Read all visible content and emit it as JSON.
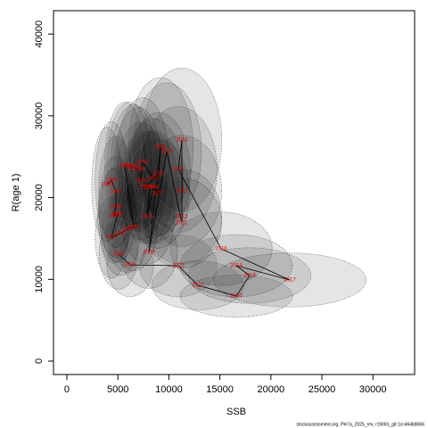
{
  "chart_data": {
    "type": "scatter",
    "x_label": "SSB",
    "y_label": "R(age 1)",
    "footer": "stockassessment.org, Ple7a_2025_rev, r19081_git:1cc464b8066",
    "labels": [
      "1985",
      "1986",
      "1987",
      "1988",
      "1989",
      "1990",
      "1991",
      "1992",
      "1993",
      "1994",
      "1995",
      "1996",
      "1997",
      "1998",
      "1999",
      "2000",
      "2001",
      "2002",
      "2003",
      "2004",
      "2005",
      "2006",
      "2007",
      "2008",
      "2009",
      "2010",
      "2011",
      "2012",
      "2013",
      "2014",
      "2015",
      "2016",
      "2017",
      "2018",
      "2019",
      "2020",
      "2021",
      "2022",
      "2023",
      "2024"
    ],
    "x": [
      3934,
      4371,
      4808,
      4808,
      4633,
      4982,
      4371,
      5245,
      5944,
      6556,
      5682,
      6119,
      6556,
      6993,
      7255,
      7430,
      8479,
      9003,
      7692,
      8129,
      7867,
      8479,
      8916,
      9178,
      8042,
      9790,
      11276,
      11276,
      11276,
      11276,
      10926,
      15122,
      21853,
      16608,
      17919,
      16608,
      12849,
      10926,
      6206,
      5070
    ],
    "values": [
      21592,
      22137,
      20720,
      18866,
      17775,
      17993,
      15158,
      15594,
      16139,
      16358,
      23882,
      23882,
      23664,
      23446,
      22028,
      24318,
      22355,
      22901,
      21265,
      21265,
      17666,
      21265,
      20501,
      26172,
      13304,
      25627,
      16903,
      17666,
      20829,
      27044,
      23446,
      13740,
      9924,
      11668,
      10469,
      7961,
      9269,
      11668,
      11777,
      13086
    ],
    "xerr": [
      1500,
      1600,
      1700,
      1700,
      1600,
      1800,
      1600,
      1900,
      2100,
      2300,
      2000,
      2200,
      2300,
      2400,
      2500,
      2600,
      2900,
      3100,
      2700,
      2800,
      2700,
      2900,
      3100,
      3200,
      2800,
      3400,
      3900,
      3900,
      3900,
      3900,
      3800,
      5000,
      7500,
      5500,
      6000,
      5500,
      4500,
      3800,
      2300,
      1900
    ],
    "yerr": [
      7000,
      7200,
      6800,
      6200,
      5800,
      5900,
      5000,
      5100,
      5300,
      5300,
      7800,
      7800,
      7700,
      7600,
      7200,
      7900,
      7300,
      7500,
      6900,
      6900,
      5800,
      6900,
      6700,
      8500,
      4400,
      8400,
      5500,
      5800,
      6800,
      8800,
      7700,
      4500,
      3300,
      3800,
      3400,
      2600,
      3000,
      3800,
      3900,
      4300
    ],
    "line_color": "#000000",
    "label_color": "#e00000",
    "ellipse_color": "#000000",
    "xlim": [
      -1311,
      34090
    ],
    "ylim": [
      -1636,
      42857
    ],
    "xticks": [
      0,
      5000,
      10000,
      15000,
      20000,
      25000,
      30000
    ],
    "yticks": [
      0,
      10000,
      20000,
      30000,
      40000
    ]
  }
}
